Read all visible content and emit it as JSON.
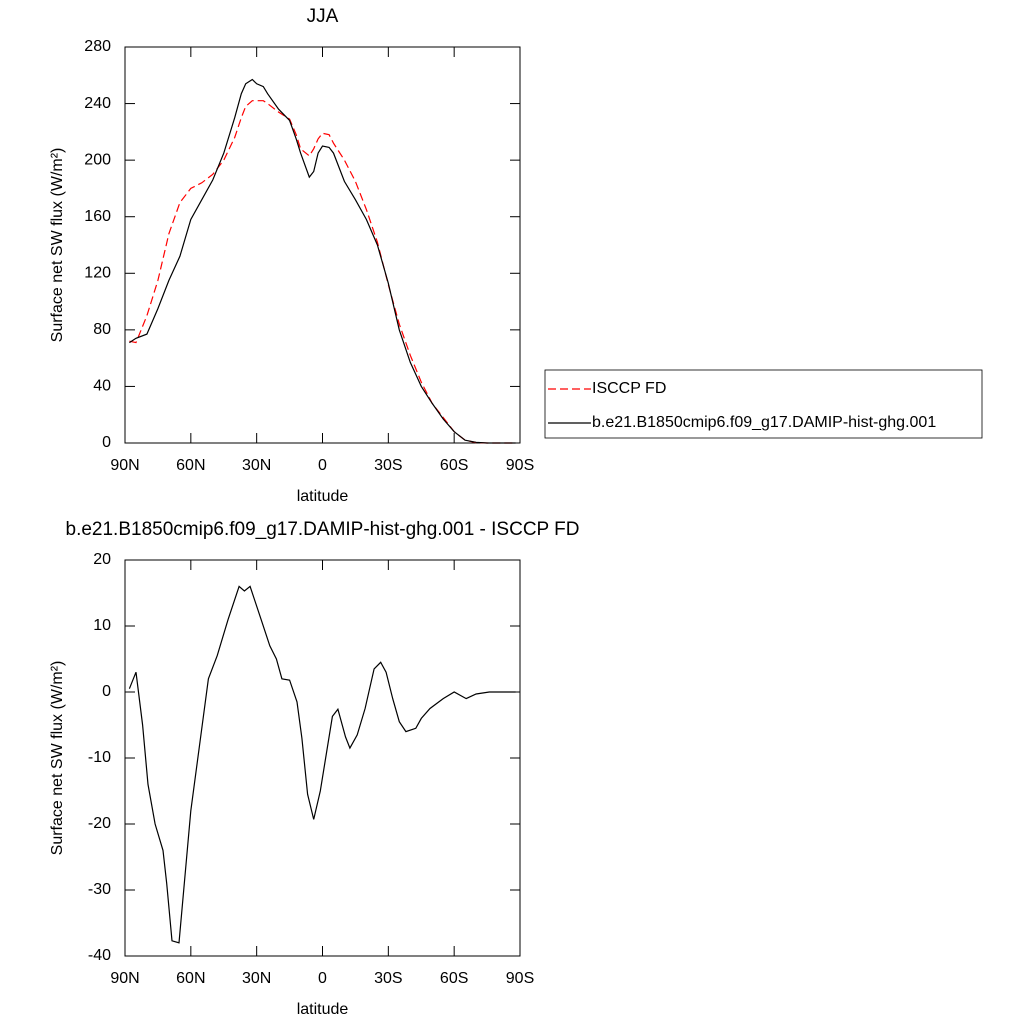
{
  "chart_data": [
    {
      "type": "line",
      "title": "JJA",
      "xlabel": "latitude",
      "ylabel": "Surface net SW flux (W/m²)",
      "x": [
        88,
        85,
        80,
        75,
        70,
        65,
        60,
        55,
        50,
        45,
        40,
        37,
        35,
        32,
        30,
        27,
        25,
        20,
        15,
        12,
        10,
        6,
        4,
        2,
        0,
        -3,
        -5,
        -10,
        -15,
        -20,
        -25,
        -30,
        -35,
        -40,
        -45,
        -50,
        -55,
        -60,
        -65,
        -70,
        -75,
        -80,
        -85,
        -88
      ],
      "series": [
        {
          "name": "ISCCP FD",
          "color": "#ff0000",
          "dashed": true,
          "values": [
            72,
            71,
            90,
            115,
            148,
            170,
            180,
            184,
            190,
            200,
            216,
            230,
            238,
            242,
            242,
            242,
            240,
            234,
            229,
            218,
            208,
            203,
            208,
            215,
            219,
            218,
            212,
            200,
            185,
            165,
            142,
            112,
            84,
            62,
            43,
            28,
            18,
            8,
            2,
            0.3,
            0,
            0,
            0,
            0
          ]
        },
        {
          "name": "b.e21.B1850cmip6.f09_g17.DAMIP-hist-ghg.001",
          "color": "#000000",
          "dashed": false,
          "values": [
            71,
            74,
            77,
            95,
            115,
            132,
            158,
            172,
            186,
            205,
            230,
            247,
            254,
            257,
            254,
            252,
            247,
            236,
            228,
            215,
            205,
            188,
            192,
            205,
            210,
            209,
            205,
            185,
            172,
            158,
            140,
            113,
            80,
            57,
            40,
            28,
            17,
            8,
            2,
            0.5,
            0,
            0,
            0,
            0
          ]
        }
      ],
      "xlim": [
        90,
        -90
      ],
      "xticks": [
        {
          "value": 90,
          "label": "90N"
        },
        {
          "value": 60,
          "label": "60N"
        },
        {
          "value": 30,
          "label": "30N"
        },
        0,
        {
          "value": -30,
          "label": "30S"
        },
        {
          "value": -60,
          "label": "60S"
        },
        {
          "value": -90,
          "label": "90S"
        }
      ],
      "ylim": [
        0,
        280
      ],
      "yticks": [
        0,
        40,
        80,
        120,
        160,
        200,
        240,
        280
      ],
      "legend": "right"
    },
    {
      "type": "line",
      "title": "b.e21.B1850cmip6.f09_g17.DAMIP-hist-ghg.001 - ISCCP FD",
      "xlabel": "latitude",
      "ylabel": "Surface net SW flux (W/m²)",
      "x": [
        88,
        85,
        82,
        79.5,
        76.3,
        72.7,
        71,
        68.6,
        65.4,
        60,
        56,
        52,
        48,
        43,
        38,
        35.6,
        33,
        28,
        24,
        21,
        18.5,
        15,
        11.6,
        9.4,
        6.8,
        4,
        1,
        -4.5,
        -7,
        -10.5,
        -12.5,
        -15.8,
        -19.4,
        -23.5,
        -26.5,
        -29,
        -32,
        -35,
        -38,
        -42.5,
        -45,
        -49,
        -55,
        -60,
        -65.5,
        -70,
        -76,
        -88
      ],
      "series": [
        {
          "color": "#000000",
          "dashed": false,
          "values": [
            0.5,
            3,
            -5,
            -14,
            -20,
            -24,
            -29,
            -37.7,
            -38,
            -18,
            -8,
            2,
            5.5,
            11,
            16,
            15.3,
            16,
            11,
            7,
            5,
            2,
            1.8,
            -1.5,
            -7,
            -15.5,
            -19.3,
            -15,
            -3.7,
            -2.6,
            -6.8,
            -8.5,
            -6.5,
            -2.5,
            3.5,
            4.5,
            3,
            -1,
            -4.5,
            -6,
            -5.5,
            -4,
            -2.5,
            -1,
            0,
            -1,
            -0.3,
            0,
            0
          ]
        }
      ],
      "xlim": [
        90,
        -90
      ],
      "xticks": [
        {
          "value": 90,
          "label": "90N"
        },
        {
          "value": 60,
          "label": "60N"
        },
        {
          "value": 30,
          "label": "30N"
        },
        0,
        {
          "value": -30,
          "label": "30S"
        },
        {
          "value": -60,
          "label": "60S"
        },
        {
          "value": -90,
          "label": "90S"
        }
      ],
      "ylim": [
        -40,
        20
      ],
      "yticks": [
        -40,
        -30,
        -20,
        -10,
        0,
        10,
        20
      ]
    }
  ]
}
